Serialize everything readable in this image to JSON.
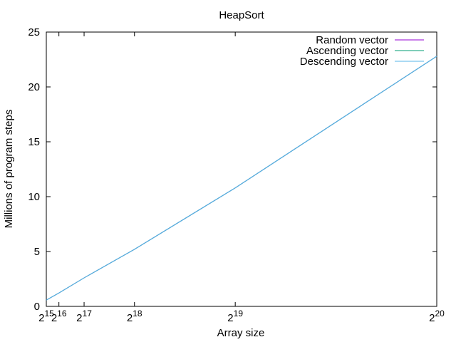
{
  "chart_data": {
    "type": "line",
    "title": "HeapSort",
    "xlabel": "Array size",
    "ylabel": "Millions of program steps",
    "x_scale": "linear",
    "x_ticks": [
      {
        "value": 32768,
        "base": "2",
        "exp": "15"
      },
      {
        "value": 65536,
        "base": "2",
        "exp": "16"
      },
      {
        "value": 131072,
        "base": "2",
        "exp": "17"
      },
      {
        "value": 262144,
        "base": "2",
        "exp": "18"
      },
      {
        "value": 524288,
        "base": "2",
        "exp": "19"
      },
      {
        "value": 1048576,
        "base": "2",
        "exp": "20"
      }
    ],
    "xlim": [
      32768,
      1048576
    ],
    "ylim": [
      0,
      25
    ],
    "y_ticks": [
      0,
      5,
      10,
      15,
      20,
      25
    ],
    "grid": false,
    "legend_position": "top-right",
    "x": [
      32768,
      65536,
      131072,
      262144,
      524288,
      1048576
    ],
    "series": [
      {
        "name": "Random vector",
        "color": "#9400d3",
        "values": [
          0.57,
          1.22,
          2.6,
          5.2,
          10.8,
          22.8
        ]
      },
      {
        "name": "Ascending vector",
        "color": "#009e73",
        "values": [
          0.57,
          1.22,
          2.6,
          5.2,
          10.8,
          22.8
        ]
      },
      {
        "name": "Descending vector",
        "color": "#56b4e9",
        "values": [
          0.57,
          1.22,
          2.6,
          5.2,
          10.8,
          22.8
        ]
      }
    ]
  }
}
